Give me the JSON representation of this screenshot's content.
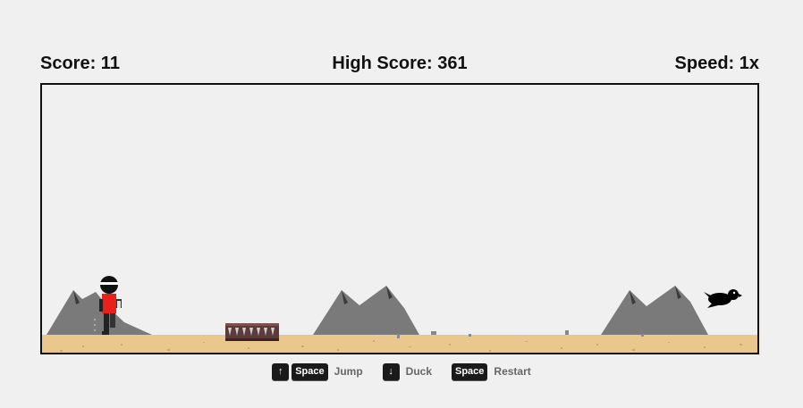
{
  "hud": {
    "score": "Score: 11",
    "high_score": "High Score: 361",
    "speed": "Speed: 1x"
  },
  "colors": {
    "background": "#f0f0f0",
    "ground": "#e8c88c",
    "mountain": "#7a7a7a",
    "mountain_shadow": "#3a3a3a",
    "player_shirt": "#e8221a",
    "player_body": "#111111",
    "spike_box": "#5a3a3a",
    "bird": "#000000"
  },
  "controls": [
    {
      "keys": [
        "↑",
        "Space"
      ],
      "label": "Jump"
    },
    {
      "keys": [
        "↓"
      ],
      "label": "Duck"
    },
    {
      "keys": [
        "Space"
      ],
      "label": "Restart"
    }
  ],
  "scene": {
    "player": "runner-with-headband",
    "obstacles": [
      "spike-box"
    ],
    "enemies": [
      "black-bird"
    ],
    "background": [
      "mountains",
      "sand-ground"
    ]
  }
}
